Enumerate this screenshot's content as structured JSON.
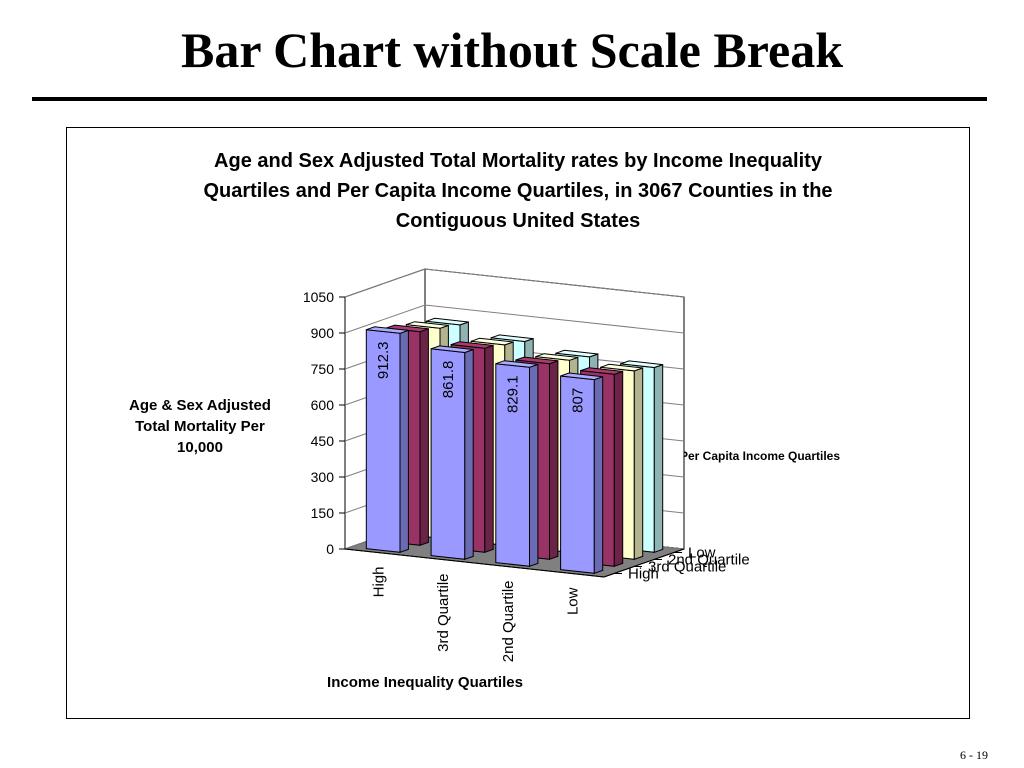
{
  "slide": {
    "title": "Bar Chart without Scale Break",
    "page_number": "6 - 19"
  },
  "chart_data": {
    "type": "bar",
    "title": "Age and Sex Adjusted Total Mortality rates by Income Inequality Quartiles and Per Capita Income Quartiles, in 3067 Counties in the Contiguous United States",
    "title_lines": [
      "Age and Sex Adjusted Total Mortality rates by Income Inequality",
      "Quartiles and Per Capita Income Quartiles, in 3067 Counties in the",
      "Contiguous United States"
    ],
    "ylabel": "Age & Sex Adjusted Total Mortality Per 10,000",
    "ylabel_lines": [
      "Age & Sex Adjusted",
      "Total Mortality Per",
      "10,000"
    ],
    "xlabel": "Income Inequality Quartiles",
    "zlabel": "Per Capita Income Quartiles",
    "ylim": [
      0,
      1050
    ],
    "yticks": [
      "0",
      "150",
      "300",
      "450",
      "600",
      "750",
      "900",
      "1050"
    ],
    "categories": [
      "High",
      "3rd Quartile",
      "2nd Quartile",
      "Low"
    ],
    "series": [
      {
        "name": "High",
        "color": "#9999ff",
        "values": [
          912.3,
          861.8,
          829.1,
          807
        ],
        "value_labels": [
          "912.3",
          "861.8",
          "829.1",
          "807"
        ]
      },
      {
        "name": "3rd Quartile",
        "color": "#993366",
        "values": [
          890,
          850,
          815,
          800
        ]
      },
      {
        "name": "2nd Quartile",
        "color": "#ffffcc",
        "values": [
          875,
          835,
          800,
          785
        ]
      },
      {
        "name": "Low",
        "color": "#ccffff",
        "values": [
          860,
          820,
          785,
          770
        ]
      }
    ],
    "grid": true,
    "style": "3d-column"
  }
}
